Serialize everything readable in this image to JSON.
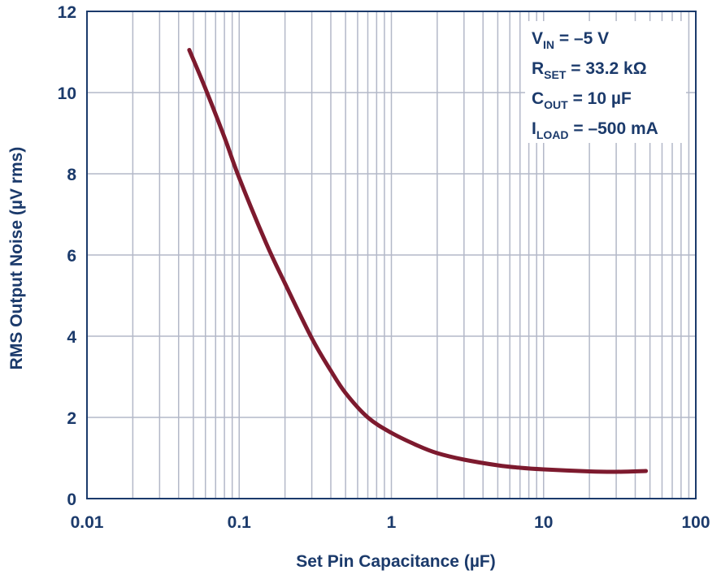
{
  "chart_data": {
    "type": "line",
    "xscale": "log",
    "xlabel": "Set Pin Capacitance (µF)",
    "ylabel": "RMS Output Noise (µV rms)",
    "xlim": [
      0.01,
      100
    ],
    "ylim": [
      0,
      12
    ],
    "xticks": [
      "0.01",
      "0.1",
      "1",
      "10",
      "100"
    ],
    "yticks": [
      "0",
      "2",
      "4",
      "6",
      "8",
      "10",
      "12"
    ],
    "grid": true,
    "colors": {
      "series": "#7d1a2e",
      "axis": "#1b3a6b",
      "grid": "#b3b8c8"
    },
    "series": [
      {
        "x": [
          0.047,
          0.06,
          0.08,
          0.1,
          0.15,
          0.2,
          0.3,
          0.4,
          0.5,
          0.7,
          1,
          1.5,
          2,
          3,
          5,
          7,
          10,
          20,
          30,
          47
        ],
        "y": [
          11.05,
          10.1,
          8.9,
          7.9,
          6.3,
          5.3,
          3.95,
          3.15,
          2.6,
          2.0,
          1.62,
          1.3,
          1.12,
          0.96,
          0.82,
          0.76,
          0.72,
          0.67,
          0.66,
          0.68
        ]
      }
    ],
    "annotations": [
      {
        "main": "V",
        "sub": "IN",
        "rest": " = –5 V"
      },
      {
        "main": "R",
        "sub": "SET",
        "rest": " = 33.2 kΩ"
      },
      {
        "main": "C",
        "sub": "OUT",
        "rest": " = 10 µF"
      },
      {
        "main": "I",
        "sub": "LOAD",
        "rest": " = –500 mA"
      }
    ]
  }
}
